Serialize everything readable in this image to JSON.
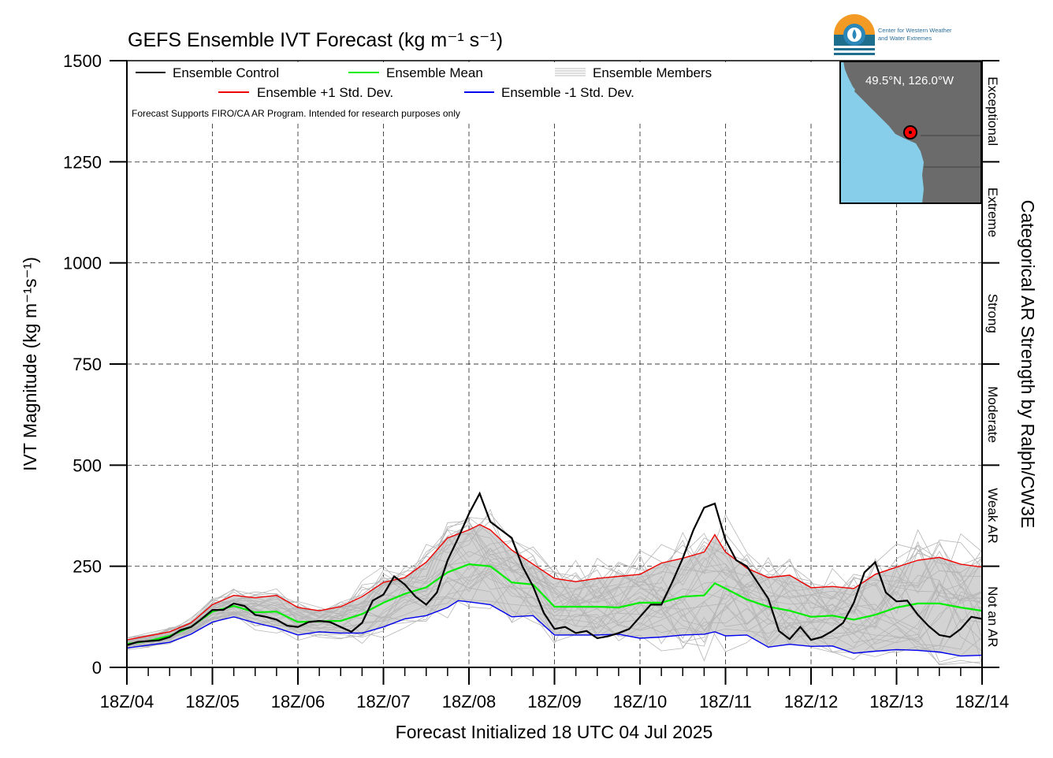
{
  "chart_data": {
    "type": "line",
    "title": "GEFS Ensemble IVT Forecast (kg m⁻¹ s⁻¹)",
    "xlabel": "Forecast Initialized 18 UTC 04 Jul 2025",
    "ylabel": "IVT Magnitude (kg m⁻¹s⁻¹)",
    "ylabel_right": "Categorical AR Strength by Ralph/CW3E",
    "note": "Forecast Supports FIRO/CA AR Program. Intended for research purposes only",
    "xlim": [
      0,
      240
    ],
    "ylim": [
      0,
      1500
    ],
    "x_ticks": [
      {
        "x": 0,
        "label": "18Z/04"
      },
      {
        "x": 24,
        "label": "18Z/05"
      },
      {
        "x": 48,
        "label": "18Z/06"
      },
      {
        "x": 72,
        "label": "18Z/07"
      },
      {
        "x": 96,
        "label": "18Z/08"
      },
      {
        "x": 120,
        "label": "18Z/09"
      },
      {
        "x": 144,
        "label": "18Z/10"
      },
      {
        "x": 168,
        "label": "18Z/11"
      },
      {
        "x": 192,
        "label": "18Z/12"
      },
      {
        "x": 216,
        "label": "18Z/13"
      },
      {
        "x": 240,
        "label": "18Z/14"
      }
    ],
    "y_ticks": [
      0,
      250,
      500,
      750,
      1000,
      1250,
      1500
    ],
    "grid": true,
    "legend_position": "top-left",
    "categories": [
      {
        "label": "Not an AR",
        "from": 0,
        "to": 250
      },
      {
        "label": "Weak AR",
        "from": 250,
        "to": 500
      },
      {
        "label": "Moderate",
        "from": 500,
        "to": 750
      },
      {
        "label": "Strong",
        "from": 750,
        "to": 1000
      },
      {
        "label": "Extreme",
        "from": 1000,
        "to": 1250
      },
      {
        "label": "Exceptional",
        "from": 1250,
        "to": 1500
      }
    ],
    "legend": [
      {
        "name": "Ensemble Control",
        "color": "#000000"
      },
      {
        "name": "Ensemble Mean",
        "color": "#00ee00"
      },
      {
        "name": "Ensemble Members",
        "color": "#bbbbbb"
      },
      {
        "name": "Ensemble +1 Std. Dev.",
        "color": "#ee0000"
      },
      {
        "name": "Ensemble -1 Std. Dev.",
        "color": "#0000ee"
      }
    ],
    "series": [
      {
        "name": "Ensemble Control",
        "color": "#000000",
        "points": [
          [
            0,
            55
          ],
          [
            3,
            63
          ],
          [
            6,
            65
          ],
          [
            9,
            67
          ],
          [
            12,
            75
          ],
          [
            15,
            92
          ],
          [
            18,
            100
          ],
          [
            21,
            120
          ],
          [
            24,
            142
          ],
          [
            27,
            142
          ],
          [
            30,
            158
          ],
          [
            33,
            152
          ],
          [
            36,
            130
          ],
          [
            39,
            125
          ],
          [
            42,
            118
          ],
          [
            45,
            103
          ],
          [
            48,
            100
          ],
          [
            51,
            112
          ],
          [
            54,
            115
          ],
          [
            57,
            112
          ],
          [
            60,
            100
          ],
          [
            63,
            88
          ],
          [
            66,
            110
          ],
          [
            69,
            165
          ],
          [
            72,
            180
          ],
          [
            75,
            225
          ],
          [
            78,
            205
          ],
          [
            81,
            175
          ],
          [
            84,
            155
          ],
          [
            87,
            185
          ],
          [
            90,
            265
          ],
          [
            93,
            320
          ],
          [
            96,
            380
          ],
          [
            99,
            430
          ],
          [
            102,
            360
          ],
          [
            105,
            340
          ],
          [
            108,
            320
          ],
          [
            111,
            250
          ],
          [
            114,
            200
          ],
          [
            117,
            135
          ],
          [
            120,
            95
          ],
          [
            123,
            100
          ],
          [
            126,
            85
          ],
          [
            129,
            90
          ],
          [
            132,
            72
          ],
          [
            135,
            77
          ],
          [
            138,
            85
          ],
          [
            141,
            95
          ],
          [
            144,
            125
          ],
          [
            147,
            155
          ],
          [
            150,
            155
          ],
          [
            153,
            210
          ],
          [
            156,
            270
          ],
          [
            159,
            340
          ],
          [
            162,
            395
          ],
          [
            165,
            405
          ],
          [
            168,
            315
          ],
          [
            171,
            265
          ],
          [
            174,
            250
          ],
          [
            177,
            210
          ],
          [
            180,
            170
          ],
          [
            183,
            90
          ],
          [
            186,
            70
          ],
          [
            189,
            100
          ],
          [
            192,
            68
          ],
          [
            195,
            75
          ],
          [
            198,
            90
          ],
          [
            201,
            110
          ],
          [
            204,
            160
          ],
          [
            207,
            235
          ],
          [
            210,
            260
          ],
          [
            213,
            185
          ],
          [
            216,
            163
          ],
          [
            219,
            165
          ],
          [
            222,
            130
          ],
          [
            225,
            102
          ],
          [
            228,
            80
          ],
          [
            231,
            75
          ],
          [
            234,
            95
          ],
          [
            237,
            125
          ],
          [
            240,
            120
          ]
        ]
      },
      {
        "name": "Ensemble Mean",
        "color": "#00ee00",
        "points": [
          [
            0,
            58
          ],
          [
            6,
            65
          ],
          [
            12,
            78
          ],
          [
            18,
            100
          ],
          [
            24,
            138
          ],
          [
            30,
            152
          ],
          [
            36,
            136
          ],
          [
            42,
            138
          ],
          [
            48,
            112
          ],
          [
            54,
            114
          ],
          [
            60,
            115
          ],
          [
            66,
            132
          ],
          [
            72,
            160
          ],
          [
            78,
            182
          ],
          [
            84,
            198
          ],
          [
            90,
            235
          ],
          [
            96,
            255
          ],
          [
            102,
            250
          ],
          [
            108,
            210
          ],
          [
            114,
            205
          ],
          [
            120,
            150
          ],
          [
            126,
            150
          ],
          [
            132,
            150
          ],
          [
            138,
            148
          ],
          [
            144,
            160
          ],
          [
            150,
            160
          ],
          [
            156,
            175
          ],
          [
            162,
            178
          ],
          [
            165,
            208
          ],
          [
            168,
            195
          ],
          [
            174,
            168
          ],
          [
            180,
            150
          ],
          [
            186,
            140
          ],
          [
            192,
            125
          ],
          [
            198,
            128
          ],
          [
            204,
            118
          ],
          [
            210,
            130
          ],
          [
            216,
            148
          ],
          [
            222,
            158
          ],
          [
            228,
            158
          ],
          [
            234,
            148
          ],
          [
            240,
            140
          ]
        ]
      },
      {
        "name": "Ensemble +1 Std. Dev.",
        "color": "#ee0000",
        "points": [
          [
            0,
            68
          ],
          [
            6,
            78
          ],
          [
            12,
            88
          ],
          [
            18,
            110
          ],
          [
            24,
            155
          ],
          [
            30,
            178
          ],
          [
            36,
            172
          ],
          [
            42,
            178
          ],
          [
            48,
            148
          ],
          [
            54,
            140
          ],
          [
            60,
            150
          ],
          [
            66,
            175
          ],
          [
            72,
            210
          ],
          [
            78,
            222
          ],
          [
            84,
            260
          ],
          [
            90,
            320
          ],
          [
            96,
            340
          ],
          [
            99,
            353
          ],
          [
            102,
            340
          ],
          [
            108,
            290
          ],
          [
            114,
            255
          ],
          [
            120,
            220
          ],
          [
            126,
            212
          ],
          [
            132,
            220
          ],
          [
            138,
            225
          ],
          [
            144,
            230
          ],
          [
            150,
            258
          ],
          [
            156,
            270
          ],
          [
            162,
            285
          ],
          [
            165,
            328
          ],
          [
            168,
            285
          ],
          [
            174,
            245
          ],
          [
            180,
            222
          ],
          [
            186,
            228
          ],
          [
            192,
            197
          ],
          [
            198,
            200
          ],
          [
            204,
            195
          ],
          [
            210,
            230
          ],
          [
            216,
            248
          ],
          [
            222,
            265
          ],
          [
            228,
            272
          ],
          [
            234,
            255
          ],
          [
            240,
            248
          ]
        ]
      },
      {
        "name": "Ensemble -1 Std. Dev.",
        "color": "#0000ee",
        "points": [
          [
            0,
            48
          ],
          [
            6,
            55
          ],
          [
            12,
            62
          ],
          [
            18,
            82
          ],
          [
            24,
            112
          ],
          [
            30,
            125
          ],
          [
            36,
            110
          ],
          [
            42,
            98
          ],
          [
            48,
            80
          ],
          [
            54,
            88
          ],
          [
            60,
            85
          ],
          [
            66,
            85
          ],
          [
            72,
            100
          ],
          [
            78,
            120
          ],
          [
            84,
            128
          ],
          [
            90,
            148
          ],
          [
            93,
            165
          ],
          [
            96,
            162
          ],
          [
            102,
            155
          ],
          [
            108,
            125
          ],
          [
            114,
            128
          ],
          [
            120,
            80
          ],
          [
            126,
            80
          ],
          [
            132,
            80
          ],
          [
            138,
            82
          ],
          [
            144,
            72
          ],
          [
            150,
            75
          ],
          [
            156,
            80
          ],
          [
            162,
            82
          ],
          [
            165,
            88
          ],
          [
            168,
            78
          ],
          [
            174,
            80
          ],
          [
            180,
            50
          ],
          [
            186,
            57
          ],
          [
            192,
            52
          ],
          [
            198,
            53
          ],
          [
            204,
            35
          ],
          [
            210,
            40
          ],
          [
            216,
            44
          ],
          [
            222,
            42
          ],
          [
            228,
            38
          ],
          [
            234,
            28
          ],
          [
            240,
            30
          ]
        ]
      }
    ]
  },
  "inset_map": {
    "location_label": "49.5°N, 126.0°W",
    "ocean_color": "#87ceeb",
    "land_color": "#6b6b6b"
  },
  "logo": {
    "org_name_line1": "Center for Western Weather",
    "org_name_line2": "and Water Extremes"
  }
}
